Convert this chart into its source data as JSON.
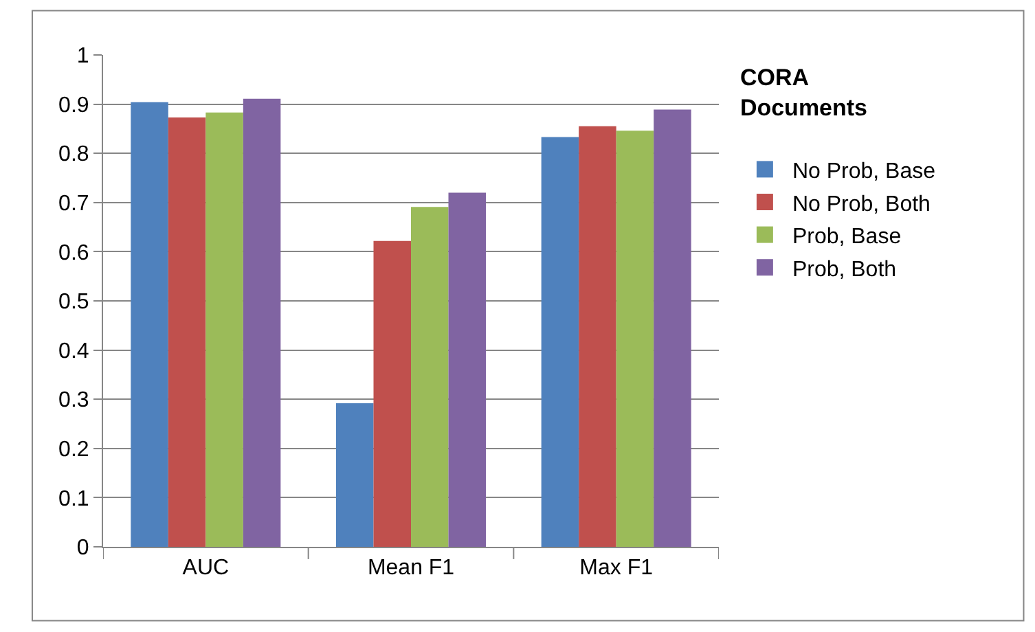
{
  "chart_data": {
    "type": "bar",
    "legend_title": "CORA Documents",
    "categories": [
      "AUC",
      "Mean F1",
      "Max F1"
    ],
    "series": [
      {
        "name": "No Prob, Base",
        "color": "#4f81bd",
        "values": [
          0.904,
          0.292,
          0.833
        ]
      },
      {
        "name": "No Prob, Both",
        "color": "#c0504d",
        "values": [
          0.873,
          0.622,
          0.855
        ]
      },
      {
        "name": "Prob, Base",
        "color": "#9bbb59",
        "values": [
          0.883,
          0.691,
          0.846
        ]
      },
      {
        "name": "Prob, Both",
        "color": "#8064a2",
        "values": [
          0.911,
          0.72,
          0.889
        ]
      }
    ],
    "ylim": [
      0,
      1
    ],
    "yticks": [
      0,
      0.1,
      0.2,
      0.3,
      0.4,
      0.5,
      0.6,
      0.7,
      0.8,
      0.9,
      1
    ],
    "grid": "y",
    "legend": "right"
  }
}
